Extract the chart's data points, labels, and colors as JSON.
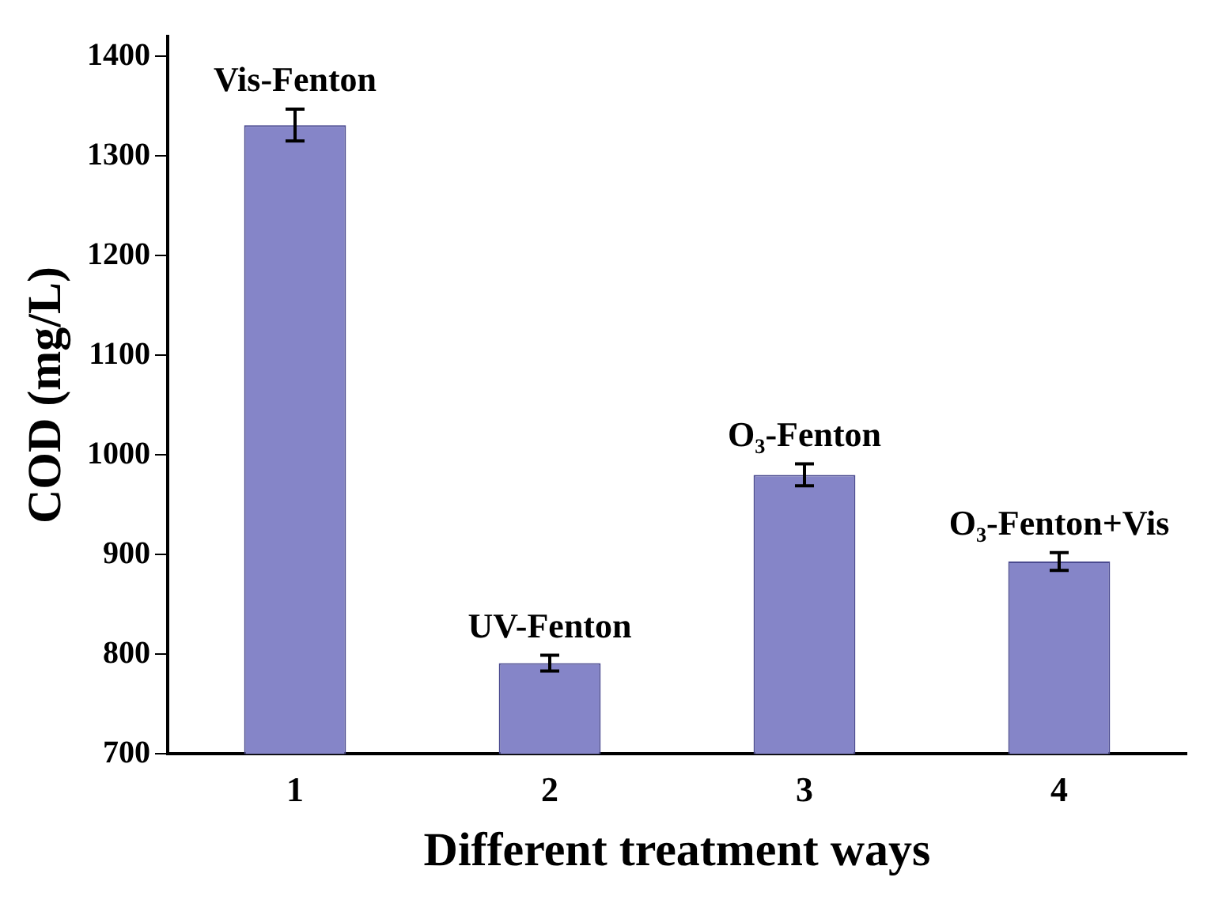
{
  "chart_data": {
    "type": "bar",
    "xlabel": "Different treatment ways",
    "ylabel": "COD (mg/L)",
    "categories": [
      "1",
      "2",
      "3",
      "4"
    ],
    "values": [
      1331,
      791,
      980,
      893
    ],
    "errors": [
      16,
      8,
      11,
      9
    ],
    "color": "#8585c8",
    "ylim": [
      700,
      1420
    ],
    "yticks": [
      700,
      800,
      900,
      1000,
      1100,
      1200,
      1300,
      1400
    ],
    "grid": false,
    "legend": false,
    "annotations": [
      {
        "text": "Vis-Fenton",
        "x": "1",
        "y": 1347
      },
      {
        "text": "UV-Fenton",
        "x": "2",
        "y": 799
      },
      {
        "text": "O₃-Fenton",
        "x": "3",
        "y": 991
      },
      {
        "text": "O₃-Fenton+Vis",
        "x": "4",
        "y": 902
      }
    ]
  }
}
